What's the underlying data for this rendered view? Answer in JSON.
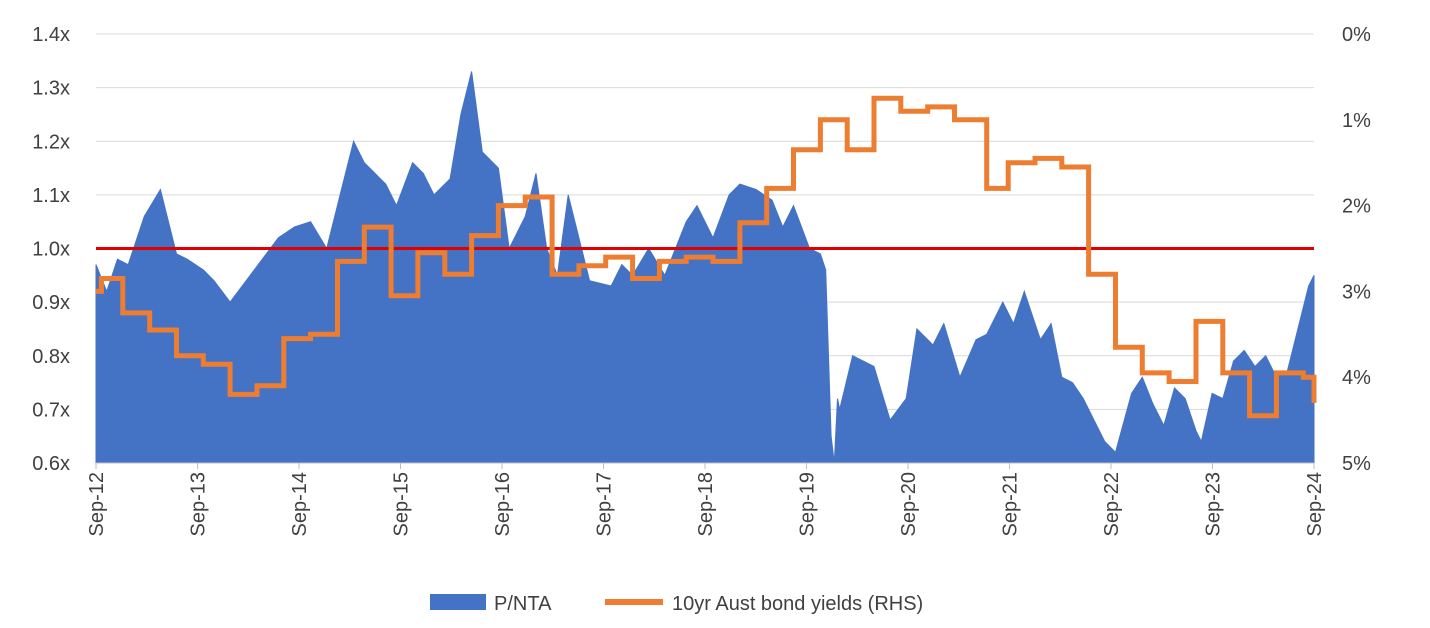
{
  "chart_data": {
    "type": "area",
    "title": "",
    "xlabel": "",
    "ylabel": "",
    "x_ticks": [
      "Sep-12",
      "Sep-13",
      "Sep-14",
      "Sep-15",
      "Sep-16",
      "Sep-17",
      "Sep-18",
      "Sep-19",
      "Sep-20",
      "Sep-21",
      "Sep-22",
      "Sep-23",
      "Sep-24"
    ],
    "y_left": {
      "ticks": [
        "0.6x",
        "0.7x",
        "0.8x",
        "0.9x",
        "1.0x",
        "1.1x",
        "1.2x",
        "1.3x",
        "1.4x"
      ],
      "min": 0.6,
      "max": 1.4
    },
    "y_right": {
      "ticks": [
        "0%",
        "1%",
        "2%",
        "3%",
        "4%",
        "5%"
      ],
      "min": 0,
      "max": 5,
      "inverted": true
    },
    "reference_line": {
      "value": 1.0,
      "color": "#e00000"
    },
    "grid": "horizontal",
    "legend_position": "bottom",
    "series": [
      {
        "name": "P/NTA",
        "type": "area",
        "axis": "left",
        "color": "#4472c4",
        "x": [
          2012.7,
          2012.8,
          2012.9,
          2013.0,
          2013.15,
          2013.3,
          2013.45,
          2013.55,
          2013.7,
          2013.8,
          2013.95,
          2014.1,
          2014.25,
          2014.4,
          2014.55,
          2014.7,
          2014.85,
          2015.0,
          2015.1,
          2015.2,
          2015.3,
          2015.4,
          2015.5,
          2015.65,
          2015.75,
          2015.85,
          2016.0,
          2016.1,
          2016.2,
          2016.3,
          2016.45,
          2016.55,
          2016.7,
          2016.8,
          2016.9,
          2017.0,
          2017.1,
          2017.3,
          2017.5,
          2017.6,
          2017.7,
          2017.85,
          2018.0,
          2018.1,
          2018.2,
          2018.3,
          2018.45,
          2018.6,
          2018.7,
          2018.85,
          2019.0,
          2019.1,
          2019.2,
          2019.35,
          2019.45,
          2019.5,
          2019.55,
          2019.58,
          2019.61,
          2019.63,
          2019.75,
          2019.85,
          2019.95,
          2020.1,
          2020.25,
          2020.35,
          2020.5,
          2020.6,
          2020.75,
          2020.9,
          2021.0,
          2021.15,
          2021.25,
          2021.35,
          2021.5,
          2021.6,
          2021.7,
          2021.8,
          2021.9,
          2022.0,
          2022.1,
          2022.2,
          2022.35,
          2022.45,
          2022.55,
          2022.65,
          2022.75,
          2022.85,
          2022.95,
          2023.0,
          2023.1,
          2023.2,
          2023.3,
          2023.4,
          2023.5,
          2023.6,
          2023.7,
          2023.8,
          2023.9,
          2024.0,
          2024.05
        ],
        "values": [
          0.97,
          0.92,
          0.98,
          0.97,
          1.06,
          1.11,
          0.99,
          0.98,
          0.96,
          0.94,
          0.9,
          0.94,
          0.98,
          1.02,
          1.04,
          1.05,
          1.0,
          1.12,
          1.2,
          1.16,
          1.14,
          1.12,
          1.08,
          1.16,
          1.14,
          1.1,
          1.13,
          1.25,
          1.33,
          1.18,
          1.15,
          1.0,
          1.06,
          1.14,
          1.0,
          0.95,
          1.1,
          0.94,
          0.93,
          0.97,
          0.95,
          1.0,
          0.95,
          1.0,
          1.05,
          1.08,
          1.02,
          1.1,
          1.12,
          1.11,
          1.09,
          1.04,
          1.08,
          1.0,
          0.99,
          0.96,
          0.65,
          0.6,
          0.72,
          0.7,
          0.8,
          0.79,
          0.78,
          0.68,
          0.72,
          0.85,
          0.82,
          0.86,
          0.76,
          0.83,
          0.84,
          0.9,
          0.86,
          0.92,
          0.83,
          0.86,
          0.76,
          0.75,
          0.72,
          0.68,
          0.64,
          0.62,
          0.73,
          0.76,
          0.71,
          0.67,
          0.74,
          0.72,
          0.66,
          0.64,
          0.73,
          0.72,
          0.79,
          0.81,
          0.78,
          0.8,
          0.76,
          0.77,
          0.85,
          0.93,
          0.95
        ]
      },
      {
        "name": "10yr Aust bond yields (RHS)",
        "type": "step-line",
        "axis": "right",
        "color": "#ed7d31",
        "x": [
          2012.7,
          2012.75,
          2012.95,
          2013.2,
          2013.45,
          2013.7,
          2013.95,
          2014.2,
          2014.45,
          2014.7,
          2014.95,
          2015.2,
          2015.45,
          2015.7,
          2015.95,
          2016.2,
          2016.45,
          2016.7,
          2016.95,
          2017.2,
          2017.45,
          2017.7,
          2017.95,
          2018.2,
          2018.45,
          2018.7,
          2018.95,
          2019.2,
          2019.45,
          2019.7,
          2019.95,
          2020.2,
          2020.45,
          2020.7,
          2021.0,
          2021.2,
          2021.45,
          2021.7,
          2021.95,
          2022.2,
          2022.45,
          2022.7,
          2022.95,
          2023.2,
          2023.45,
          2023.7,
          2023.95,
          2024.05
        ],
        "values": [
          3.0,
          2.85,
          3.25,
          3.45,
          3.75,
          3.85,
          4.2,
          4.1,
          3.55,
          3.5,
          2.65,
          2.25,
          3.05,
          2.55,
          2.8,
          2.35,
          2.0,
          1.9,
          2.8,
          2.7,
          2.6,
          2.85,
          2.65,
          2.6,
          2.65,
          2.2,
          1.8,
          1.35,
          1.0,
          1.35,
          0.75,
          0.9,
          0.85,
          1.0,
          1.8,
          1.5,
          1.45,
          1.55,
          2.8,
          3.65,
          3.95,
          4.05,
          3.35,
          3.95,
          4.45,
          3.95,
          4.0,
          4.3
        ]
      }
    ]
  }
}
